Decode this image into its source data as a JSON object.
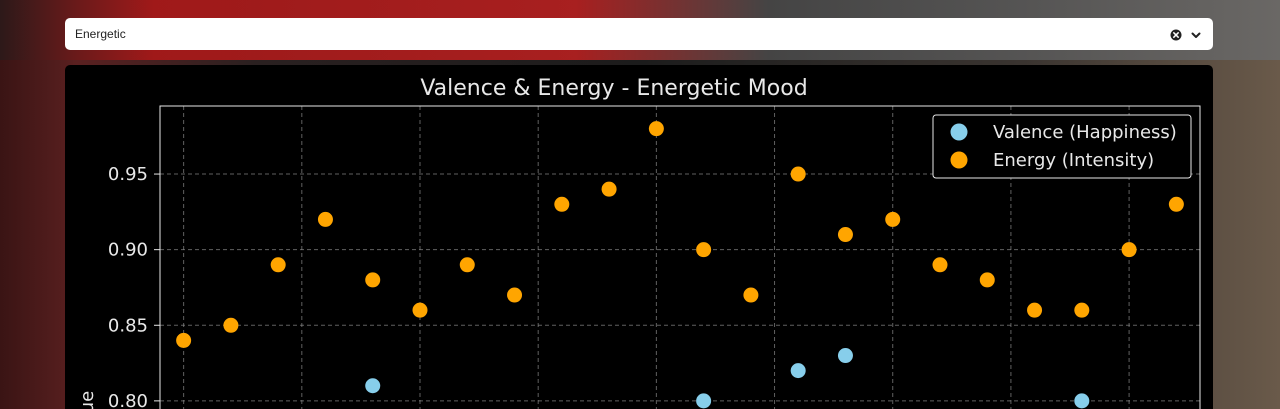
{
  "mood_select": {
    "value": "Energetic"
  },
  "chart_data": {
    "type": "scatter",
    "title": "Valence & Energy - Energetic Mood",
    "ylabel": "ue",
    "ylim": [
      0.79,
      0.995
    ],
    "xlim": [
      -0.5,
      21.5
    ],
    "y_ticks": [
      0.8,
      0.85,
      0.9,
      0.95
    ],
    "y_tick_labels": [
      "0.80",
      "0.85",
      "0.90",
      "0.95"
    ],
    "grid": true,
    "legend_position": "top-right",
    "series": [
      {
        "name": "Valence (Happiness)",
        "color": "#87ceeb",
        "points": [
          {
            "x": 4,
            "y": 0.81
          },
          {
            "x": 11,
            "y": 0.8
          },
          {
            "x": 13,
            "y": 0.82
          },
          {
            "x": 14,
            "y": 0.83
          },
          {
            "x": 19,
            "y": 0.8
          }
        ]
      },
      {
        "name": "Energy (Intensity)",
        "color": "#ffa500",
        "points": [
          {
            "x": 0,
            "y": 0.84
          },
          {
            "x": 1,
            "y": 0.85
          },
          {
            "x": 2,
            "y": 0.89
          },
          {
            "x": 3,
            "y": 0.92
          },
          {
            "x": 4,
            "y": 0.88
          },
          {
            "x": 5,
            "y": 0.86
          },
          {
            "x": 6,
            "y": 0.89
          },
          {
            "x": 7,
            "y": 0.87
          },
          {
            "x": 8,
            "y": 0.93
          },
          {
            "x": 9,
            "y": 0.94
          },
          {
            "x": 10,
            "y": 0.98
          },
          {
            "x": 11,
            "y": 0.9
          },
          {
            "x": 12,
            "y": 0.87
          },
          {
            "x": 13,
            "y": 0.95
          },
          {
            "x": 14,
            "y": 0.91
          },
          {
            "x": 15,
            "y": 0.92
          },
          {
            "x": 16,
            "y": 0.89
          },
          {
            "x": 17,
            "y": 0.88
          },
          {
            "x": 18,
            "y": 0.86
          },
          {
            "x": 19,
            "y": 0.86
          },
          {
            "x": 20,
            "y": 0.9
          },
          {
            "x": 21,
            "y": 0.93
          }
        ]
      }
    ]
  }
}
